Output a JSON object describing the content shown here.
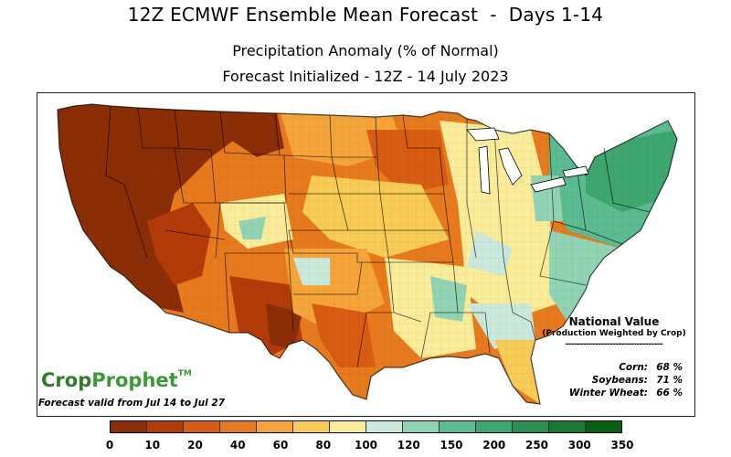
{
  "header": {
    "title": "12Z ECMWF Ensemble Mean Forecast  -  Days 1-14",
    "subtitle": "Precipitation Anomaly (% of Normal)",
    "initialized": "Forecast Initialized - 12Z - 14 July 2023"
  },
  "national": {
    "title": "National Value",
    "subtitle": "(Production Weighted by Crop)",
    "rule": "---------------------------------",
    "crops": [
      {
        "label": "Corn:",
        "value": "68 %"
      },
      {
        "label": "Soybeans:",
        "value": "71 %"
      },
      {
        "label": "Winter Wheat:",
        "value": "66 %"
      }
    ]
  },
  "brand": {
    "crop": "Crop",
    "prophet": "Prophet",
    "tm": "TM"
  },
  "valid": "Forecast valid from Jul 14 to Jul 27",
  "legend": {
    "colors": [
      "#8b2e06",
      "#b33b07",
      "#d85c12",
      "#e87a1e",
      "#f5a43a",
      "#f7cb55",
      "#faec98",
      "#c9e9dc",
      "#90d4b4",
      "#5bbb91",
      "#3ea66f",
      "#2a8f52",
      "#167a33",
      "#085f12"
    ],
    "ticks": [
      "0",
      "10",
      "20",
      "40",
      "60",
      "80",
      "100",
      "120",
      "150",
      "200",
      "250",
      "300",
      "350"
    ]
  }
}
